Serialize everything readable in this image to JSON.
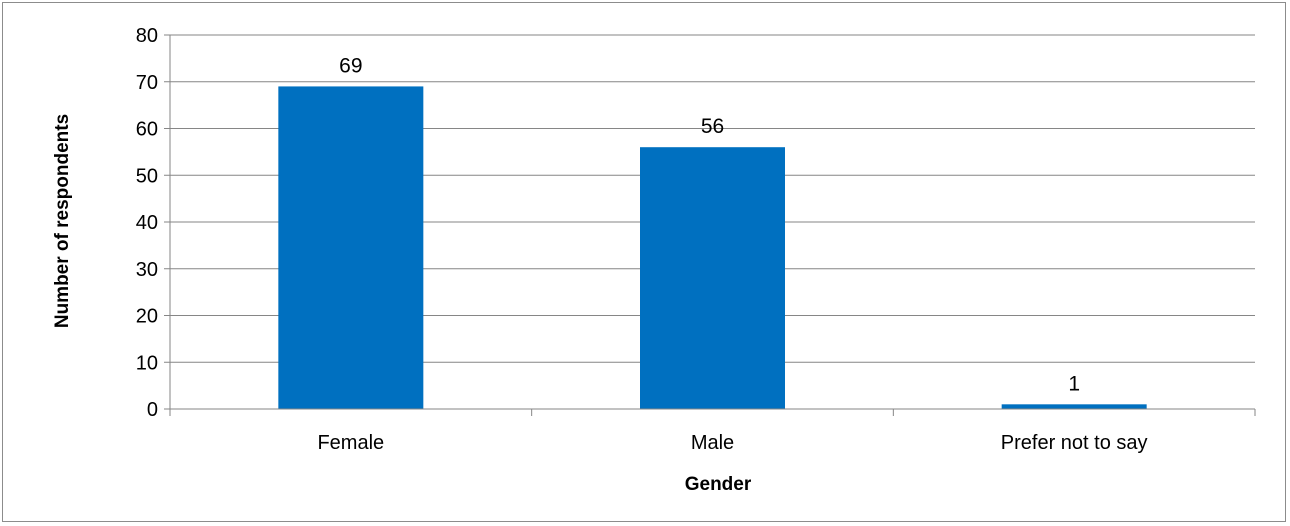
{
  "chart_data": {
    "type": "bar",
    "title": "",
    "xlabel": "Gender",
    "ylabel": "Number of respondents",
    "categories": [
      "Female",
      "Male",
      "Prefer not to say"
    ],
    "values": [
      69,
      56,
      1
    ],
    "data_labels": [
      "69",
      "56",
      "1"
    ],
    "ylim": [
      0,
      80
    ],
    "yticks": [
      0,
      10,
      20,
      30,
      40,
      50,
      60,
      70,
      80
    ],
    "ytick_labels": [
      "0",
      "10",
      "20",
      "30",
      "40",
      "50",
      "60",
      "70",
      "80"
    ],
    "grid": true,
    "legend": "none",
    "bar_color": "#0070c0",
    "grid_color": "#868686"
  }
}
